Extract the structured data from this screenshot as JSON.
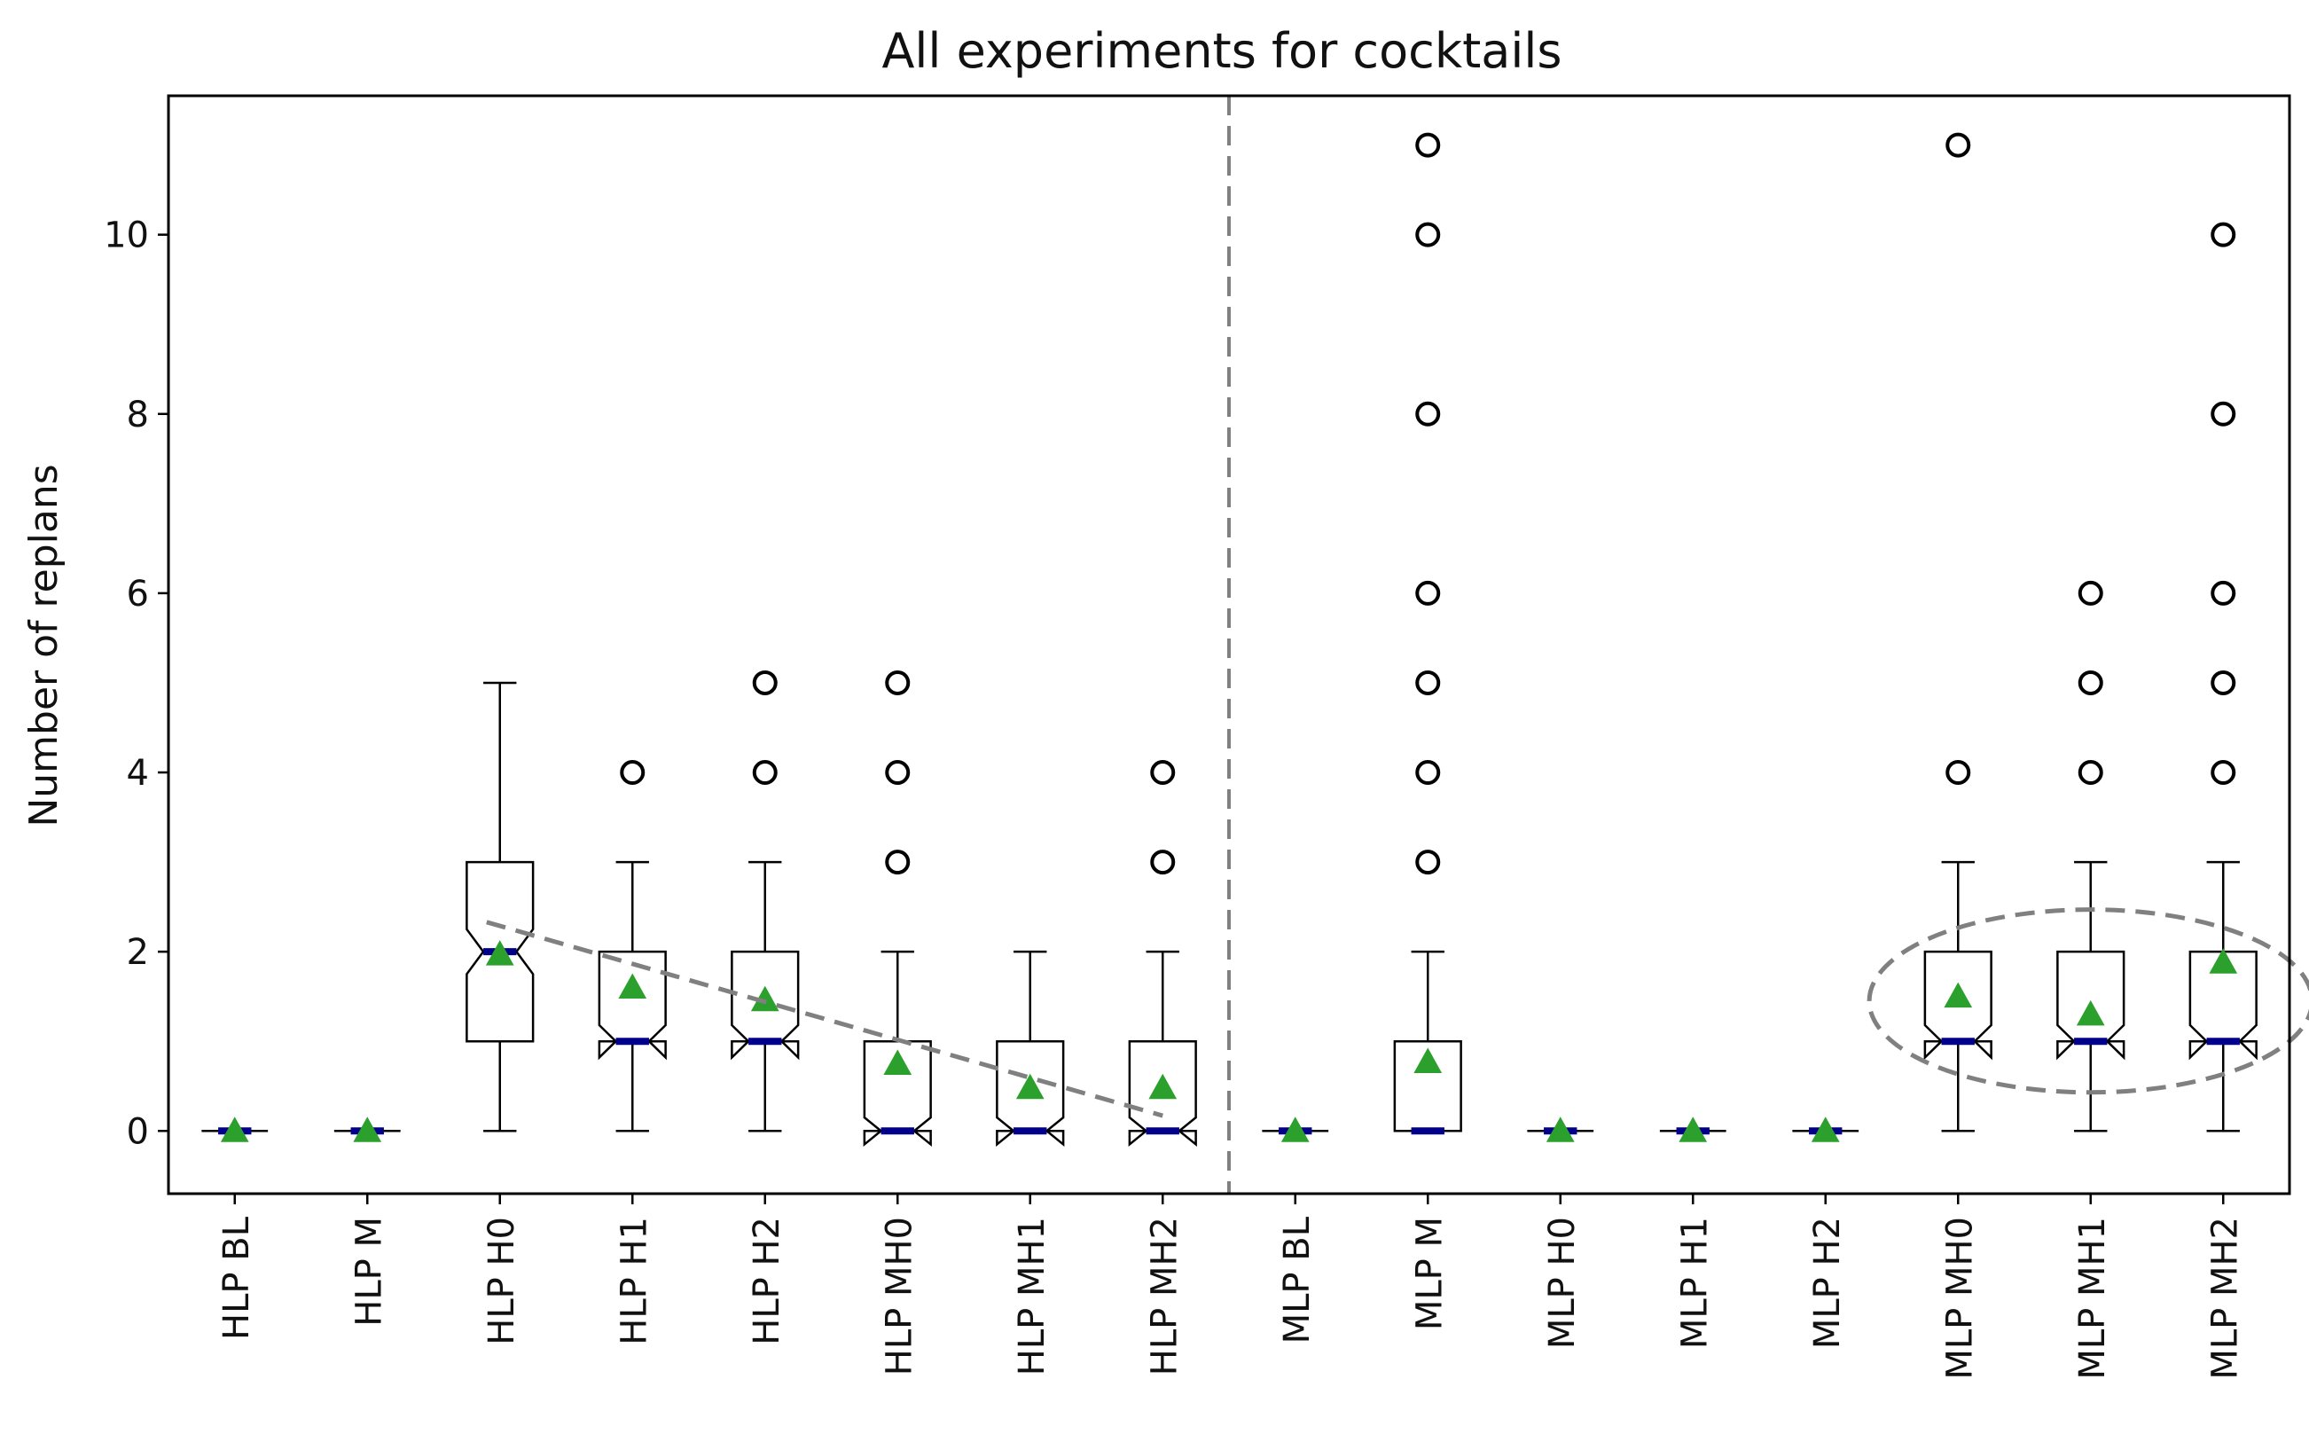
{
  "chart_data": {
    "type": "boxplot",
    "title": "All experiments for cocktails",
    "xlabel": "",
    "ylabel": "Number of replans",
    "ylim": [
      -0.7,
      11.55
    ],
    "yticks": [
      0,
      2,
      4,
      6,
      8,
      10
    ],
    "notched": true,
    "categories": [
      "HLP BL",
      "HLP M",
      "HLP H0",
      "HLP H1",
      "HLP H2",
      "HLP MH0",
      "HLP MH1",
      "HLP MH2",
      "MLP BL",
      "MLP M",
      "MLP H0",
      "MLP H1",
      "MLP H2",
      "MLP MH0",
      "MLP MH1",
      "MLP MH2"
    ],
    "boxes": [
      {
        "label": "HLP BL",
        "q1": 0,
        "median": 0,
        "q3": 0,
        "whisker_low": 0,
        "whisker_high": 0,
        "mean": 0,
        "notch_low": 0,
        "notch_high": 0,
        "outliers": []
      },
      {
        "label": "HLP M",
        "q1": 0,
        "median": 0,
        "q3": 0,
        "whisker_low": 0,
        "whisker_high": 0,
        "mean": 0,
        "notch_low": 0,
        "notch_high": 0,
        "outliers": []
      },
      {
        "label": "HLP H0",
        "q1": 1,
        "median": 2,
        "q3": 3,
        "whisker_low": 0,
        "whisker_high": 5,
        "mean": 1.97,
        "notch_low": 1.75,
        "notch_high": 2.25,
        "outliers": []
      },
      {
        "label": "HLP H1",
        "q1": 1,
        "median": 1,
        "q3": 2,
        "whisker_low": 0,
        "whisker_high": 3,
        "mean": 1.6,
        "notch_low": 0.82,
        "notch_high": 1.18,
        "outliers": [
          4
        ]
      },
      {
        "label": "HLP H2",
        "q1": 1,
        "median": 1,
        "q3": 2,
        "whisker_low": 0,
        "whisker_high": 3,
        "mean": 1.46,
        "notch_low": 0.82,
        "notch_high": 1.18,
        "outliers": [
          4,
          5
        ]
      },
      {
        "label": "HLP MH0",
        "q1": 0,
        "median": 0,
        "q3": 1,
        "whisker_low": 0,
        "whisker_high": 2,
        "mean": 0.75,
        "notch_low": -0.15,
        "notch_high": 0.15,
        "outliers": [
          3,
          4,
          5
        ]
      },
      {
        "label": "HLP MH1",
        "q1": 0,
        "median": 0,
        "q3": 1,
        "whisker_low": 0,
        "whisker_high": 2,
        "mean": 0.48,
        "notch_low": -0.15,
        "notch_high": 0.15,
        "outliers": []
      },
      {
        "label": "HLP MH2",
        "q1": 0,
        "median": 0,
        "q3": 1,
        "whisker_low": 0,
        "whisker_high": 2,
        "mean": 0.48,
        "notch_low": -0.15,
        "notch_high": 0.15,
        "outliers": [
          3,
          4
        ]
      },
      {
        "label": "MLP BL",
        "q1": 0,
        "median": 0,
        "q3": 0,
        "whisker_low": 0,
        "whisker_high": 0,
        "mean": 0,
        "notch_low": 0,
        "notch_high": 0,
        "outliers": []
      },
      {
        "label": "MLP M",
        "q1": 0,
        "median": 0,
        "q3": 1,
        "whisker_low": 0,
        "whisker_high": 2,
        "mean": 0.77,
        "notch_low": 0,
        "notch_high": 0,
        "outliers": [
          3,
          4,
          5,
          6,
          8,
          10,
          11
        ]
      },
      {
        "label": "MLP H0",
        "q1": 0,
        "median": 0,
        "q3": 0,
        "whisker_low": 0,
        "whisker_high": 0,
        "mean": 0,
        "notch_low": 0,
        "notch_high": 0,
        "outliers": []
      },
      {
        "label": "MLP H1",
        "q1": 0,
        "median": 0,
        "q3": 0,
        "whisker_low": 0,
        "whisker_high": 0,
        "mean": 0,
        "notch_low": 0,
        "notch_high": 0,
        "outliers": []
      },
      {
        "label": "MLP H2",
        "q1": 0,
        "median": 0,
        "q3": 0,
        "whisker_low": 0,
        "whisker_high": 0,
        "mean": 0,
        "notch_low": 0,
        "notch_high": 0,
        "outliers": []
      },
      {
        "label": "MLP MH0",
        "q1": 1,
        "median": 1,
        "q3": 2,
        "whisker_low": 0,
        "whisker_high": 3,
        "mean": 1.5,
        "notch_low": 0.82,
        "notch_high": 1.18,
        "outliers": [
          4,
          11
        ]
      },
      {
        "label": "MLP MH1",
        "q1": 1,
        "median": 1,
        "q3": 2,
        "whisker_low": 0,
        "whisker_high": 3,
        "mean": 1.3,
        "notch_low": 0.82,
        "notch_high": 1.18,
        "outliers": [
          4,
          5,
          6
        ]
      },
      {
        "label": "MLP MH2",
        "q1": 1,
        "median": 1,
        "q3": 2,
        "whisker_low": 0,
        "whisker_high": 3,
        "mean": 1.88,
        "notch_low": 0.82,
        "notch_high": 1.18,
        "outliers": [
          4,
          5,
          6,
          8,
          10
        ]
      }
    ],
    "annotations": {
      "separator_after_category": "HLP MH2",
      "trend_line": {
        "from": {
          "category_pos": 2.4,
          "y": 2.33
        },
        "to": {
          "category_pos": 7.5,
          "y": 0.17
        }
      },
      "highlight_ellipse": {
        "categories": [
          "MLP MH0",
          "MLP MH1",
          "MLP MH2"
        ],
        "center_y": 1.45,
        "y_radius": 1.02
      }
    },
    "colors": {
      "box": "#000000",
      "median": "#00008b",
      "mean": "#2ca02c",
      "annotation": "#808080"
    }
  }
}
